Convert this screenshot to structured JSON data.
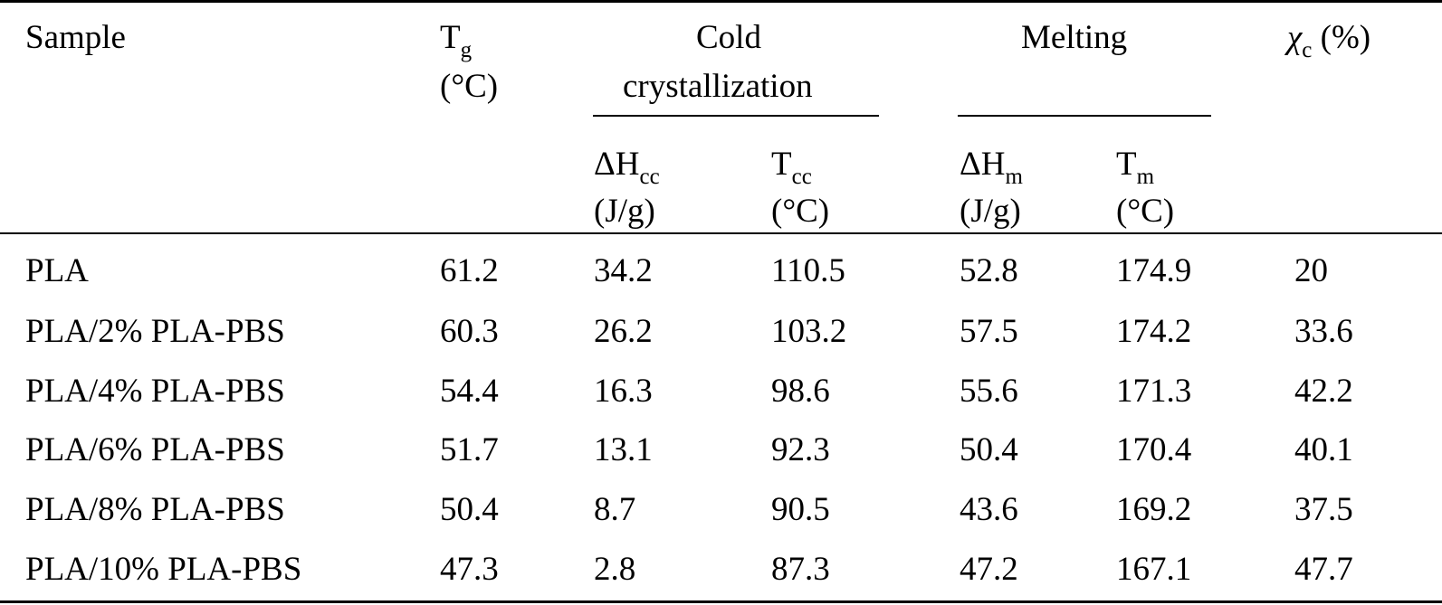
{
  "header": {
    "sample": "Sample",
    "tg_symbol": "T",
    "tg_sub": "g",
    "tg_unit": "(°C)",
    "cold_line1": "Cold",
    "cold_line2": "crystallization",
    "melting": "Melting",
    "chi_symbol": "χ",
    "chi_sub": "c",
    "chi_unit": "(%)",
    "dhcc_symbol": "ΔH",
    "dhcc_sub": "cc",
    "dhcc_unit": "(J/g)",
    "tcc_symbol": "T",
    "tcc_sub": "cc",
    "tcc_unit": "(°C)",
    "dhm_symbol": "ΔH",
    "dhm_sub": "m",
    "dhm_unit": "(J/g)",
    "tm_symbol": "T",
    "tm_sub": "m",
    "tm_unit": "(°C)"
  },
  "rows": [
    {
      "sample": "PLA",
      "tg": "61.2",
      "dhcc": "34.2",
      "tcc": "110.5",
      "dhm": "52.8",
      "tm": "174.9",
      "chi": "20"
    },
    {
      "sample": "PLA/2% PLA-PBS",
      "tg": "60.3",
      "dhcc": "26.2",
      "tcc": "103.2",
      "dhm": "57.5",
      "tm": "174.2",
      "chi": "33.6"
    },
    {
      "sample": "PLA/4% PLA-PBS",
      "tg": "54.4",
      "dhcc": "16.3",
      "tcc": "98.6",
      "dhm": "55.6",
      "tm": "171.3",
      "chi": "42.2"
    },
    {
      "sample": "PLA/6% PLA-PBS",
      "tg": "51.7",
      "dhcc": "13.1",
      "tcc": "92.3",
      "dhm": "50.4",
      "tm": "170.4",
      "chi": "40.1"
    },
    {
      "sample": "PLA/8% PLA-PBS",
      "tg": "50.4",
      "dhcc": "8.7",
      "tcc": "90.5",
      "dhm": "43.6",
      "tm": "169.2",
      "chi": "37.5"
    },
    {
      "sample": "PLA/10% PLA-PBS",
      "tg": "47.3",
      "dhcc": "2.8",
      "tcc": "87.3",
      "dhm": "47.2",
      "tm": "167.1",
      "chi": "47.7"
    }
  ]
}
